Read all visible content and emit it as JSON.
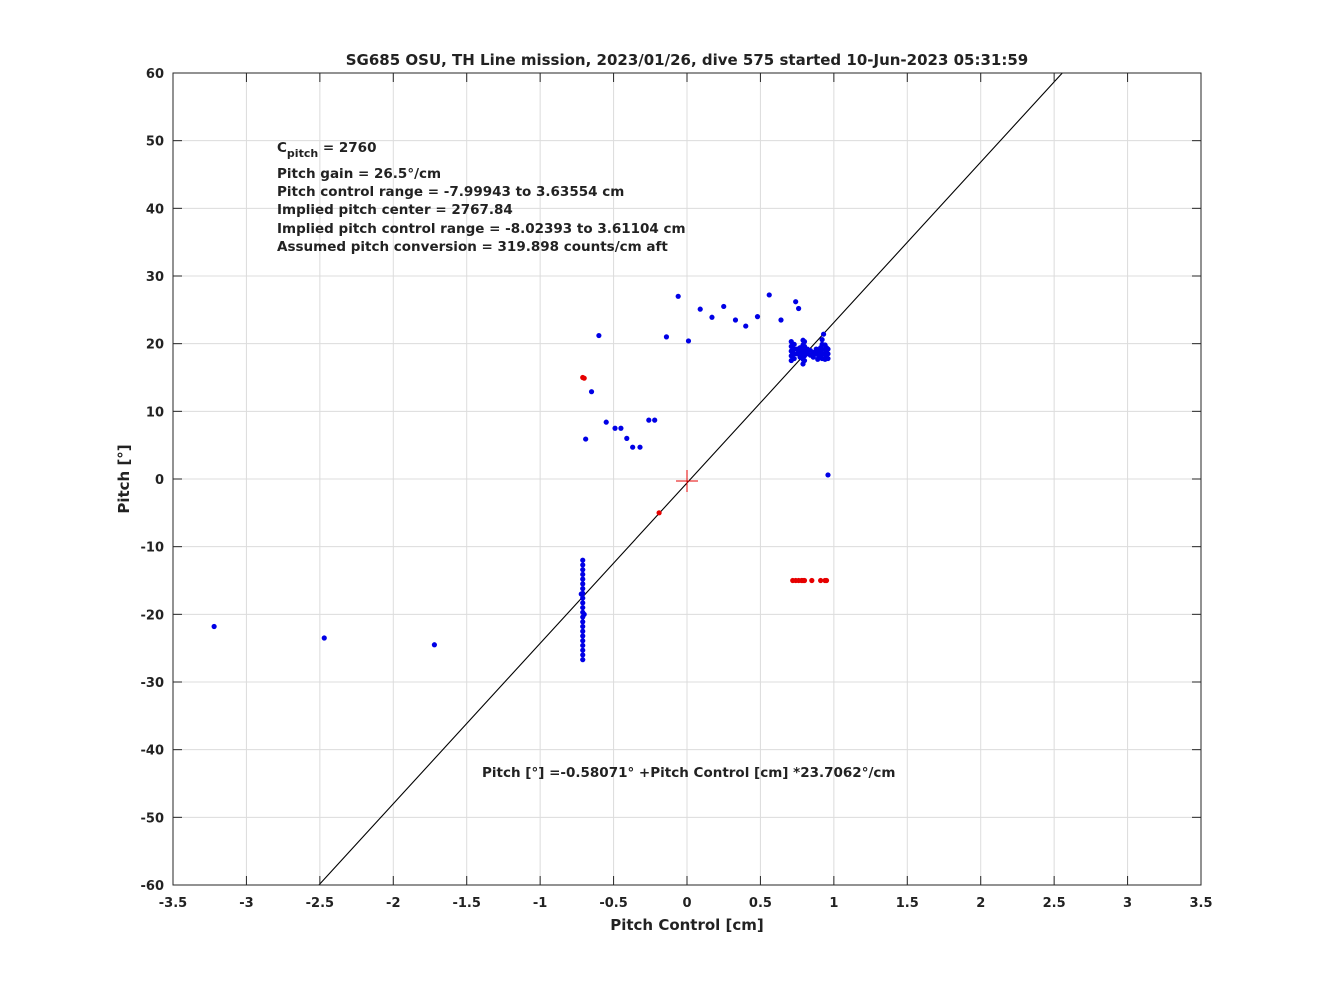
{
  "chart_data": {
    "type": "scatter",
    "title": "SG685 OSU, TH Line mission, 2023/01/26, dive 575 started 10-Jun-2023 05:31:59",
    "xlabel": "Pitch Control [cm]",
    "ylabel": "Pitch [°]",
    "xlim": [
      -3.5,
      3.5
    ],
    "ylim": [
      -60,
      60
    ],
    "xticks": [
      -3.5,
      -3,
      -2.5,
      -2,
      -1.5,
      -1,
      -0.5,
      0,
      0.5,
      1,
      1.5,
      2,
      2.5,
      3,
      3.5
    ],
    "yticks": [
      -60,
      -50,
      -40,
      -30,
      -20,
      -10,
      0,
      10,
      20,
      30,
      40,
      50,
      60
    ],
    "grid": true,
    "colors": {
      "blue": "#0000e6",
      "red": "#e60000",
      "fit": "#000000",
      "grid": "#dcdcdc"
    },
    "annotations": {
      "c_pitch_prefix": "C",
      "c_pitch_sub": "pitch",
      "c_pitch_value": " = 2760",
      "lines": [
        "Pitch gain = 26.5°/cm",
        "Pitch control range = -7.99943 to 3.63554 cm",
        "Implied pitch center = 2767.84",
        "Implied pitch control range = -8.02393 to 3.61104 cm",
        "Assumed pitch conversion = 319.898 counts/cm aft"
      ],
      "fit_equation": "Pitch [°] =-0.58071° +Pitch Control [cm] *23.7062°/cm"
    },
    "fit_line": {
      "intercept": -0.58071,
      "slope": 23.7062
    },
    "center_marker": {
      "x": 0,
      "y": -0.3
    },
    "series": [
      {
        "color": "blue",
        "points": [
          [
            -3.22,
            -21.8
          ],
          [
            -2.47,
            -23.5
          ],
          [
            -1.72,
            -24.5
          ],
          [
            -0.71,
            -12.0
          ],
          [
            -0.71,
            -12.7
          ],
          [
            -0.71,
            -13.4
          ],
          [
            -0.71,
            -14.1
          ],
          [
            -0.71,
            -14.8
          ],
          [
            -0.71,
            -15.5
          ],
          [
            -0.71,
            -16.2
          ],
          [
            -0.71,
            -16.9
          ],
          [
            -0.71,
            -17.6
          ],
          [
            -0.71,
            -18.3
          ],
          [
            -0.71,
            -19.0
          ],
          [
            -0.71,
            -19.7
          ],
          [
            -0.71,
            -20.4
          ],
          [
            -0.71,
            -21.1
          ],
          [
            -0.71,
            -21.8
          ],
          [
            -0.71,
            -22.5
          ],
          [
            -0.71,
            -23.2
          ],
          [
            -0.71,
            -23.9
          ],
          [
            -0.71,
            -24.6
          ],
          [
            -0.71,
            -25.3
          ],
          [
            -0.71,
            -26.0
          ],
          [
            -0.71,
            -26.7
          ],
          [
            -0.72,
            -17.0
          ],
          [
            -0.7,
            -20.0
          ],
          [
            -0.6,
            21.2
          ],
          [
            -0.65,
            12.9
          ],
          [
            -0.69,
            5.9
          ],
          [
            -0.55,
            8.4
          ],
          [
            -0.49,
            7.5
          ],
          [
            -0.45,
            7.5
          ],
          [
            -0.41,
            6.0
          ],
          [
            -0.37,
            4.7
          ],
          [
            -0.32,
            4.7
          ],
          [
            -0.26,
            8.7
          ],
          [
            -0.22,
            8.7
          ],
          [
            -0.14,
            21.0
          ],
          [
            -0.06,
            27.0
          ],
          [
            0.01,
            20.4
          ],
          [
            0.09,
            25.1
          ],
          [
            0.17,
            23.9
          ],
          [
            0.25,
            25.5
          ],
          [
            0.33,
            23.5
          ],
          [
            0.4,
            22.6
          ],
          [
            0.48,
            24.0
          ],
          [
            0.56,
            27.2
          ],
          [
            0.64,
            23.5
          ],
          [
            0.74,
            26.2
          ],
          [
            0.76,
            25.2
          ],
          [
            0.71,
            17.5
          ],
          [
            0.71,
            18.2
          ],
          [
            0.71,
            18.9
          ],
          [
            0.71,
            19.6
          ],
          [
            0.71,
            20.3
          ],
          [
            0.73,
            17.8
          ],
          [
            0.73,
            18.5
          ],
          [
            0.73,
            19.2
          ],
          [
            0.73,
            19.9
          ],
          [
            0.75,
            18.5
          ],
          [
            0.75,
            19.2
          ],
          [
            0.77,
            18.0
          ],
          [
            0.77,
            18.7
          ],
          [
            0.77,
            19.4
          ],
          [
            0.79,
            17.0
          ],
          [
            0.79,
            17.7
          ],
          [
            0.79,
            18.4
          ],
          [
            0.79,
            19.1
          ],
          [
            0.79,
            19.8
          ],
          [
            0.79,
            20.5
          ],
          [
            0.8,
            17.5
          ],
          [
            0.8,
            18.2
          ],
          [
            0.8,
            18.9
          ],
          [
            0.8,
            19.6
          ],
          [
            0.8,
            20.3
          ],
          [
            0.82,
            18.5
          ],
          [
            0.82,
            19.2
          ],
          [
            0.84,
            18.3
          ],
          [
            0.84,
            19.0
          ],
          [
            0.86,
            18.0
          ],
          [
            0.86,
            18.7
          ],
          [
            0.88,
            18.5
          ],
          [
            0.88,
            19.2
          ],
          [
            0.89,
            17.7
          ],
          [
            0.89,
            18.4
          ],
          [
            0.89,
            19.1
          ],
          [
            0.91,
            18.0
          ],
          [
            0.91,
            18.7
          ],
          [
            0.91,
            19.4
          ],
          [
            0.92,
            17.8
          ],
          [
            0.92,
            18.5
          ],
          [
            0.92,
            19.2
          ],
          [
            0.92,
            19.9
          ],
          [
            0.92,
            20.6
          ],
          [
            0.93,
            21.4
          ],
          [
            0.94,
            17.7
          ],
          [
            0.94,
            18.4
          ],
          [
            0.94,
            19.1
          ],
          [
            0.94,
            19.8
          ],
          [
            0.95,
            18.0
          ],
          [
            0.95,
            18.7
          ],
          [
            0.95,
            19.4
          ],
          [
            0.96,
            17.8
          ],
          [
            0.96,
            18.5
          ],
          [
            0.96,
            19.2
          ],
          [
            0.96,
            0.6
          ]
        ]
      },
      {
        "color": "red",
        "points": [
          [
            -0.71,
            15.0
          ],
          [
            -0.7,
            14.9
          ],
          [
            -0.19,
            -5.0
          ],
          [
            0.72,
            -15.0
          ],
          [
            0.74,
            -15.0
          ],
          [
            0.76,
            -15.0
          ],
          [
            0.78,
            -15.0
          ],
          [
            0.79,
            -15.0
          ],
          [
            0.8,
            -15.0
          ],
          [
            0.85,
            -15.0
          ],
          [
            0.91,
            -15.0
          ],
          [
            0.94,
            -15.0
          ],
          [
            0.95,
            -15.0
          ]
        ]
      }
    ]
  }
}
